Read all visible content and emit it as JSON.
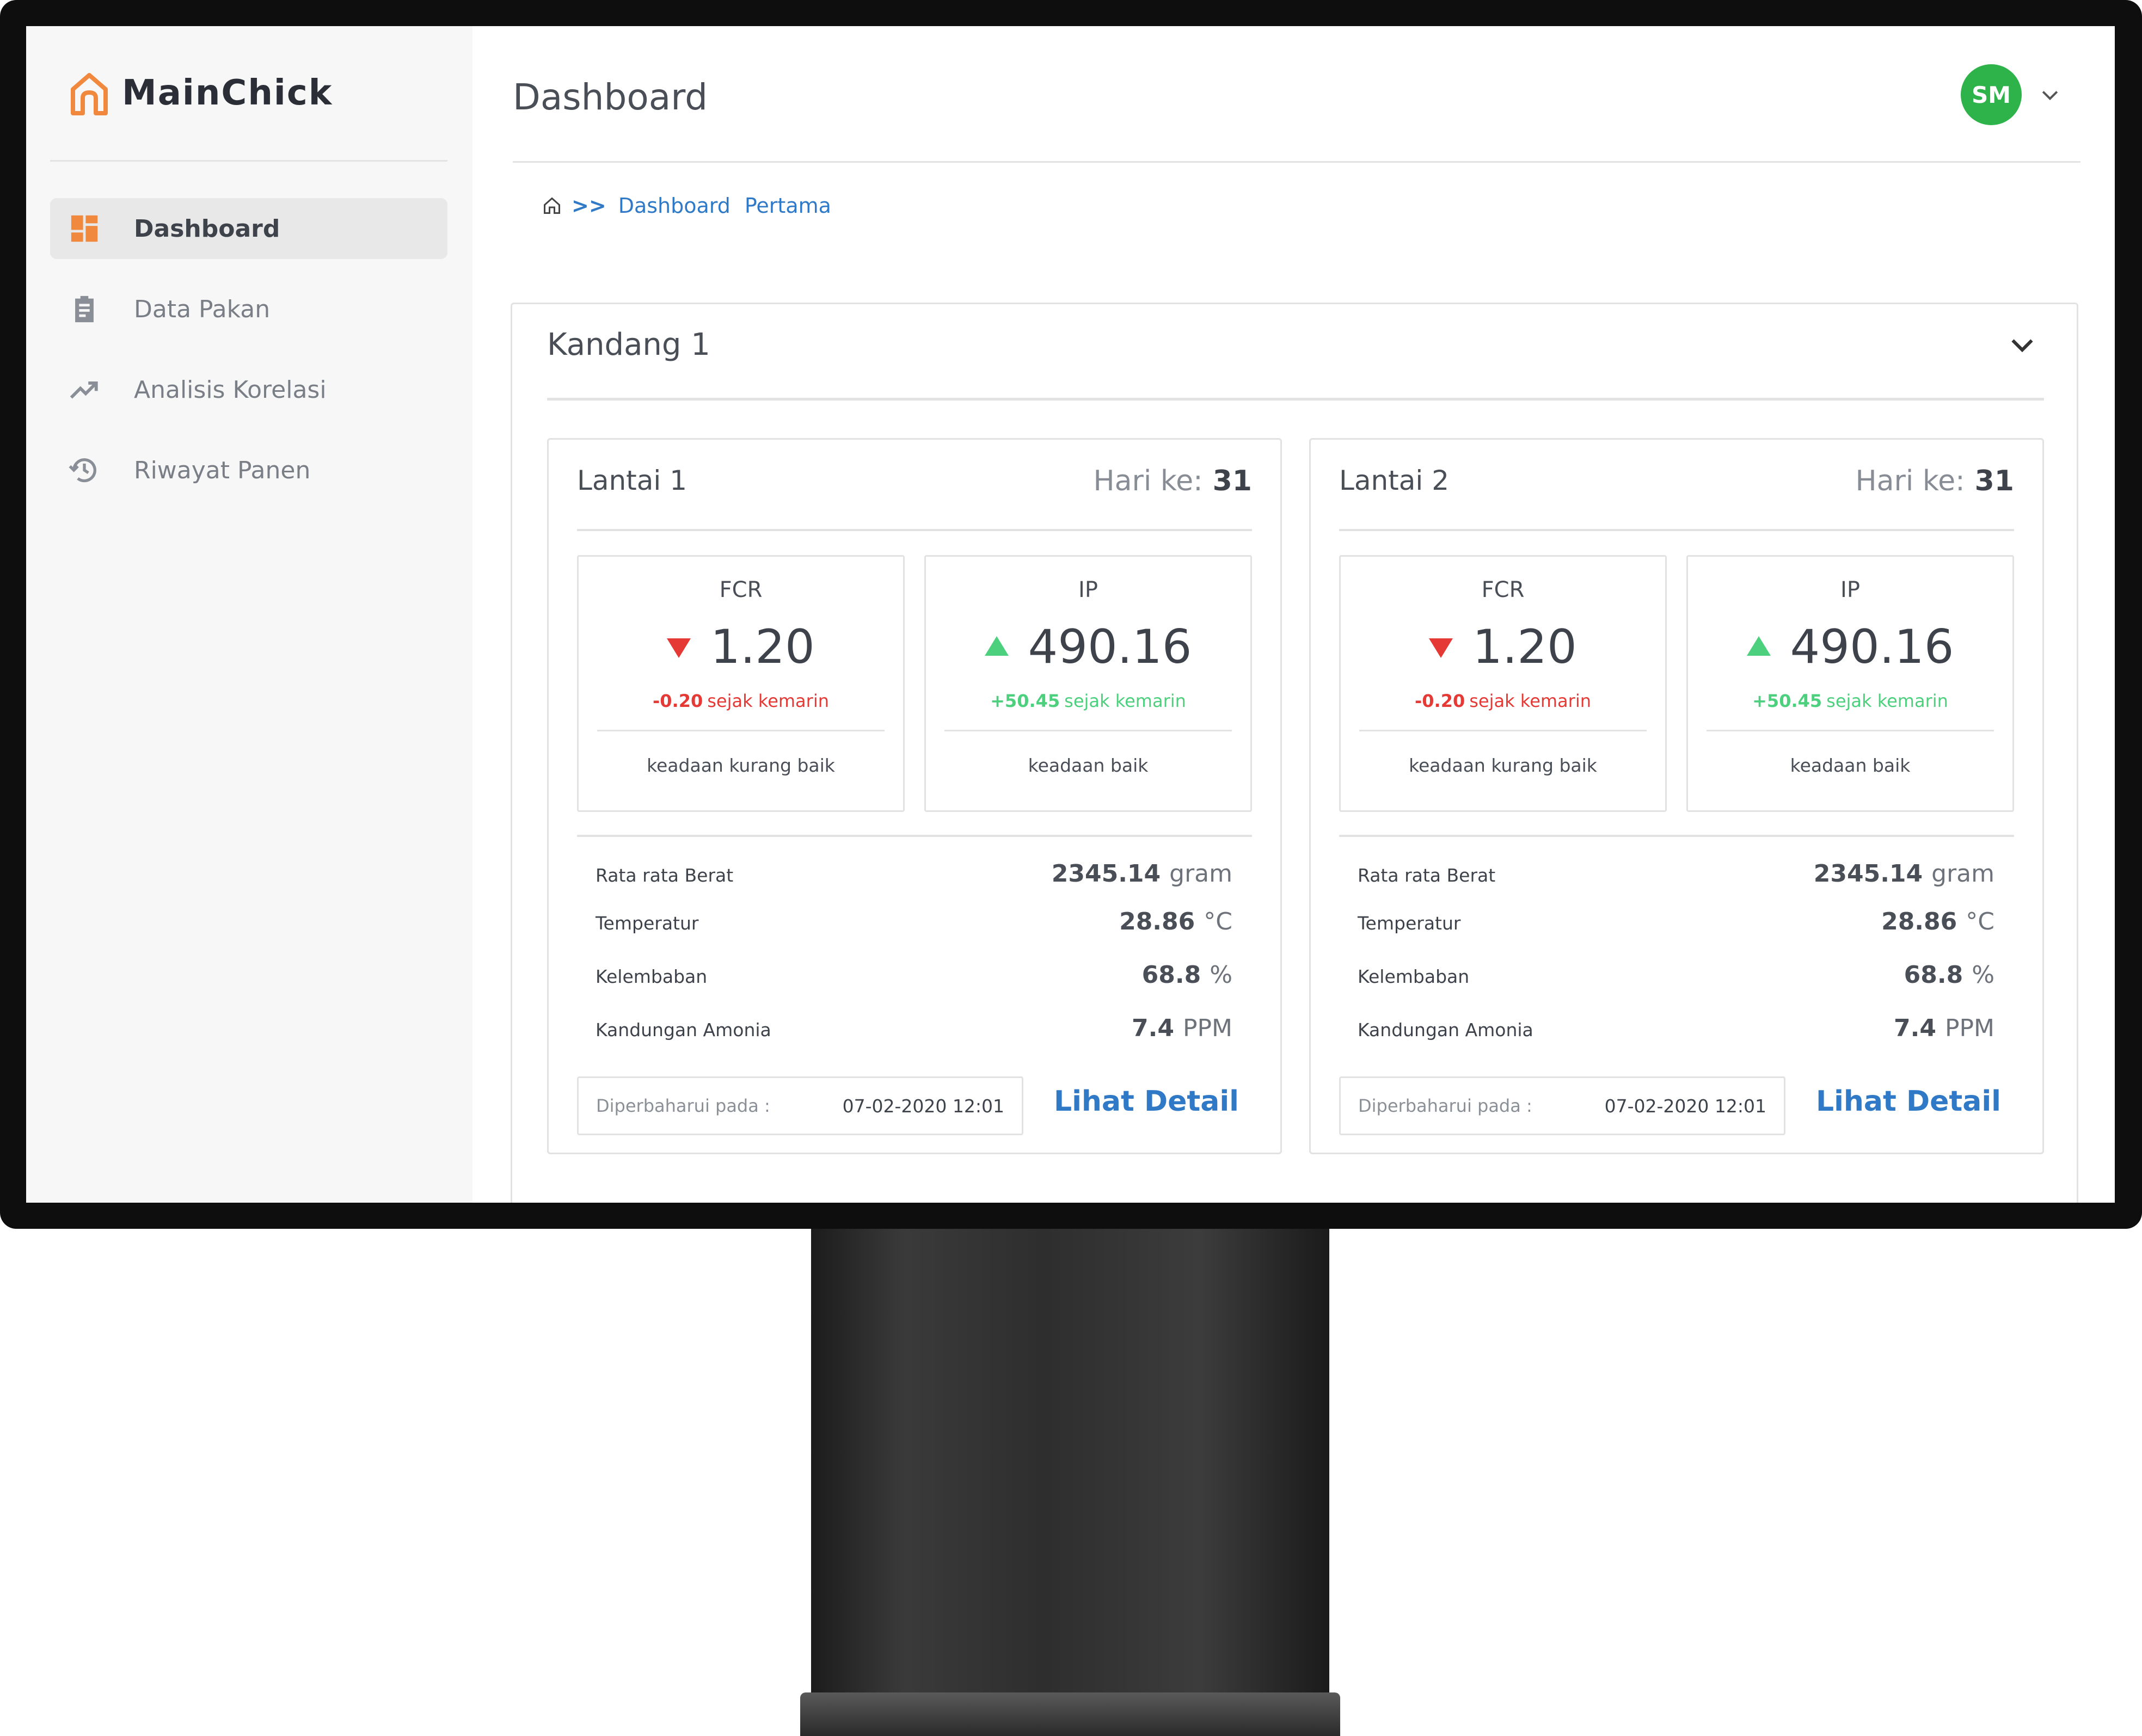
{
  "app": {
    "name": "MainChick",
    "page_title": "Dashboard",
    "user_initials": "SM"
  },
  "colors": {
    "brand": "#f0883e",
    "link": "#2f79c7",
    "down": "#e53935",
    "up": "#4cd07d",
    "avatar": "#2eb24a"
  },
  "sidebar": {
    "items": [
      {
        "label": "Dashboard",
        "icon": "dashboard-icon",
        "active": true
      },
      {
        "label": "Data Pakan",
        "icon": "clipboard-icon",
        "active": false
      },
      {
        "label": "Analisis Korelasi",
        "icon": "trending-up-icon",
        "active": false
      },
      {
        "label": "Riwayat Panen",
        "icon": "history-icon",
        "active": false
      }
    ]
  },
  "breadcrumb": {
    "separator": ">>",
    "items": [
      "Dashboard",
      "Pertama"
    ]
  },
  "kandang": {
    "title": "Kandang 1",
    "day_label": "Hari ke:",
    "floors": [
      {
        "title": "Lantai 1",
        "day": "31",
        "fcr": {
          "label": "FCR",
          "value": "1.20",
          "change": "-0.20",
          "change_text": "sejak kemarin",
          "state": "keadaan kurang baik"
        },
        "ip": {
          "label": "IP",
          "value": "490.16",
          "change": "+50.45",
          "change_text": "sejak kemarin",
          "state": "keadaan baik"
        },
        "stats": {
          "weight": {
            "label": "Rata rata Berat",
            "value": "2345.14",
            "unit": "gram"
          },
          "temperature": {
            "label": "Temperatur",
            "value": "28.86",
            "unit": "°C"
          },
          "humidity": {
            "label": "Kelembaban",
            "value": "68.8",
            "unit": "%"
          },
          "ammonia": {
            "label": "Kandungan Amonia",
            "value": "7.4",
            "unit": "PPM"
          }
        },
        "updated_label": "Diperbaharui pada :",
        "updated_value": "07-02-2020  12:01",
        "detail_label": "Lihat Detail"
      },
      {
        "title": "Lantai 2",
        "day": "31",
        "fcr": {
          "label": "FCR",
          "value": "1.20",
          "change": "-0.20",
          "change_text": "sejak kemarin",
          "state": "keadaan kurang baik"
        },
        "ip": {
          "label": "IP",
          "value": "490.16",
          "change": "+50.45",
          "change_text": "sejak kemarin",
          "state": "keadaan baik"
        },
        "stats": {
          "weight": {
            "label": "Rata rata Berat",
            "value": "2345.14",
            "unit": "gram"
          },
          "temperature": {
            "label": "Temperatur",
            "value": "28.86",
            "unit": "°C"
          },
          "humidity": {
            "label": "Kelembaban",
            "value": "68.8",
            "unit": "%"
          },
          "ammonia": {
            "label": "Kandungan Amonia",
            "value": "7.4",
            "unit": "PPM"
          }
        },
        "updated_label": "Diperbaharui pada :",
        "updated_value": "07-02-2020  12:01",
        "detail_label": "Lihat Detail"
      }
    ]
  }
}
